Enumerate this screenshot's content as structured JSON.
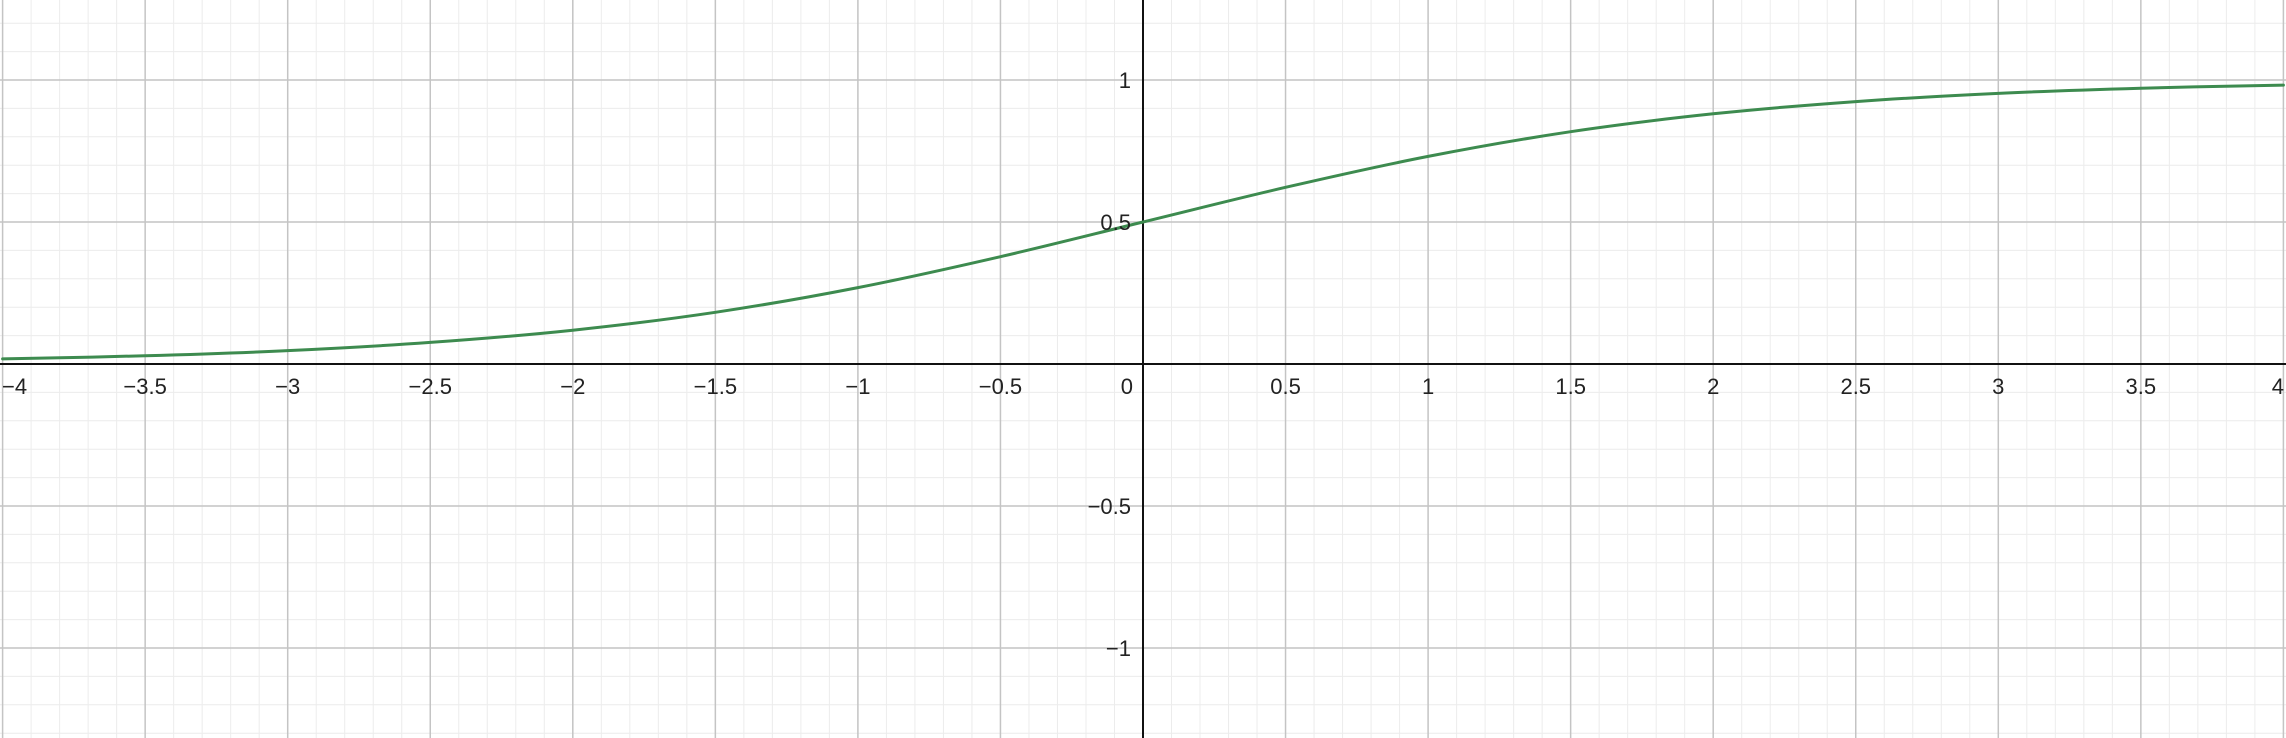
{
  "chart_data": {
    "type": "line",
    "title": "",
    "xlabel": "",
    "ylabel": "",
    "xlim": [
      -4,
      4
    ],
    "ylim": [
      -1.3,
      1.28
    ],
    "grid": true,
    "minor_grid": true,
    "x_ticks": [
      -4,
      -3.5,
      -3,
      -2.5,
      -2,
      -1.5,
      -1,
      -0.5,
      0,
      0.5,
      1,
      1.5,
      2,
      2.5,
      3,
      3.5,
      4
    ],
    "x_tick_labels": [
      "−4",
      "−3.5",
      "−3",
      "−2.5",
      "−2",
      "−1.5",
      "−1",
      "−0.5",
      "0",
      "0.5",
      "1",
      "1.5",
      "2",
      "2.5",
      "3",
      "3.5",
      "4"
    ],
    "y_ticks": [
      -1,
      -0.5,
      0.5,
      1
    ],
    "y_tick_labels": [
      "−1",
      "−0.5",
      "0.5",
      "1"
    ],
    "series": [
      {
        "color": "#3d8b4f",
        "x": [
          -4,
          -3.5,
          -3,
          -2.5,
          -2,
          -1.5,
          -1,
          -0.5,
          0,
          0.5,
          1,
          1.5,
          2,
          2.5,
          3,
          3.5,
          4
        ],
        "values": [
          0.018,
          0.029,
          0.047,
          0.076,
          0.119,
          0.182,
          0.269,
          0.378,
          0.5,
          0.622,
          0.731,
          0.818,
          0.881,
          0.924,
          0.953,
          0.971,
          0.982
        ]
      }
    ]
  },
  "colors": {
    "background": "#ffffff",
    "major_grid": "#c4c4c4",
    "minor_grid": "#ececec",
    "axis": "#111111"
  }
}
